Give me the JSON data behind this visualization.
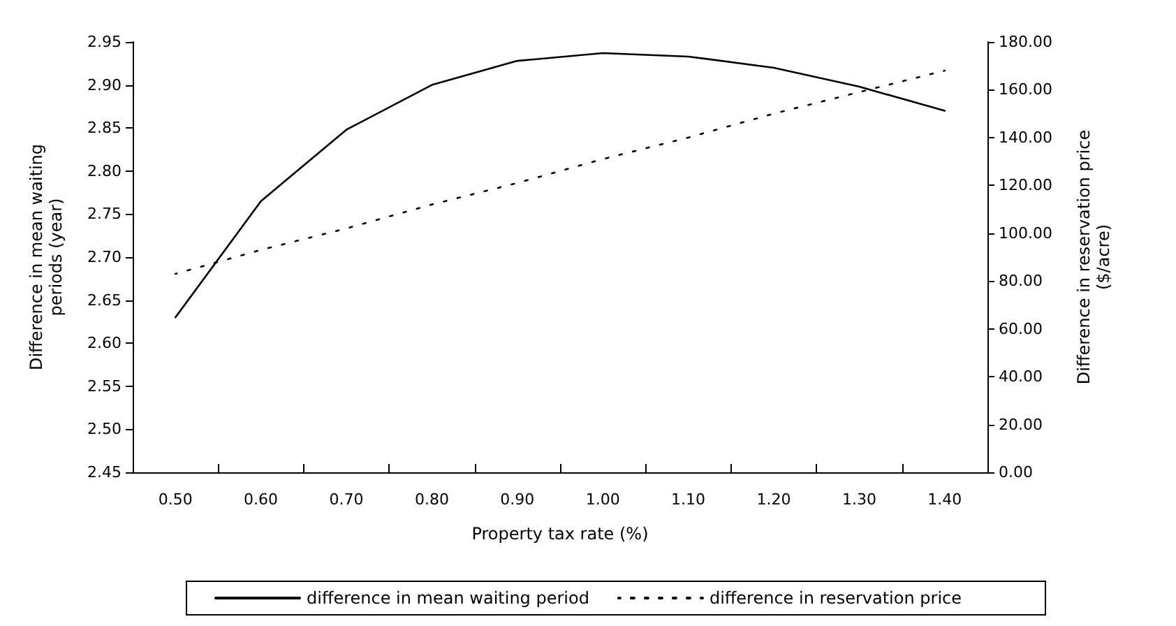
{
  "chart_data": {
    "type": "line",
    "xlabel": "Property tax rate (%)",
    "ylabel": "Difference in mean waiting\nperiods (year)",
    "y2label": "Difference in reservation price\n($/acre)",
    "categories": [
      "0.50",
      "0.60",
      "0.70",
      "0.80",
      "0.90",
      "1.00",
      "1.10",
      "1.20",
      "1.30",
      "1.40"
    ],
    "series": [
      {
        "name": "difference in mean waiting period",
        "color": "#000000",
        "line_style": "solid",
        "values": [
          2.63,
          2.765,
          2.848,
          2.9,
          2.928,
          2.937,
          2.933,
          2.92,
          2.898,
          2.87
        ]
      },
      {
        "name": "difference in reservation price",
        "color": "#000000",
        "line_style": "dotted",
        "axis": "y2",
        "values": [
          83,
          93,
          102,
          112,
          121,
          131,
          140,
          150,
          159,
          168
        ]
      }
    ],
    "ylim": [
      2.45,
      2.95
    ],
    "yticks": [
      {
        "value": 2.45,
        "label": "2.45"
      },
      {
        "value": 2.5,
        "label": "2.50"
      },
      {
        "value": 2.55,
        "label": "2.55"
      },
      {
        "value": 2.6,
        "label": "2.60"
      },
      {
        "value": 2.65,
        "label": "2.65"
      },
      {
        "value": 2.7,
        "label": "2.70"
      },
      {
        "value": 2.75,
        "label": "2.75"
      },
      {
        "value": 2.8,
        "label": "2.80"
      },
      {
        "value": 2.85,
        "label": "2.85"
      },
      {
        "value": 2.9,
        "label": "2.90"
      },
      {
        "value": 2.95,
        "label": "2.95"
      }
    ],
    "y2lim": [
      0,
      180
    ],
    "y2ticks": [
      {
        "value": 0,
        "label": "0.00"
      },
      {
        "value": 20,
        "label": "20.00"
      },
      {
        "value": 40,
        "label": "40.00"
      },
      {
        "value": 60,
        "label": "60.00"
      },
      {
        "value": 80,
        "label": "80.00"
      },
      {
        "value": 100,
        "label": "100.00"
      },
      {
        "value": 120,
        "label": "120.00"
      },
      {
        "value": 140,
        "label": "140.00"
      },
      {
        "value": 160,
        "label": "160.00"
      },
      {
        "value": 180,
        "label": "180.00"
      }
    ],
    "grid": false,
    "legend": "bottom",
    "marker": "none"
  }
}
